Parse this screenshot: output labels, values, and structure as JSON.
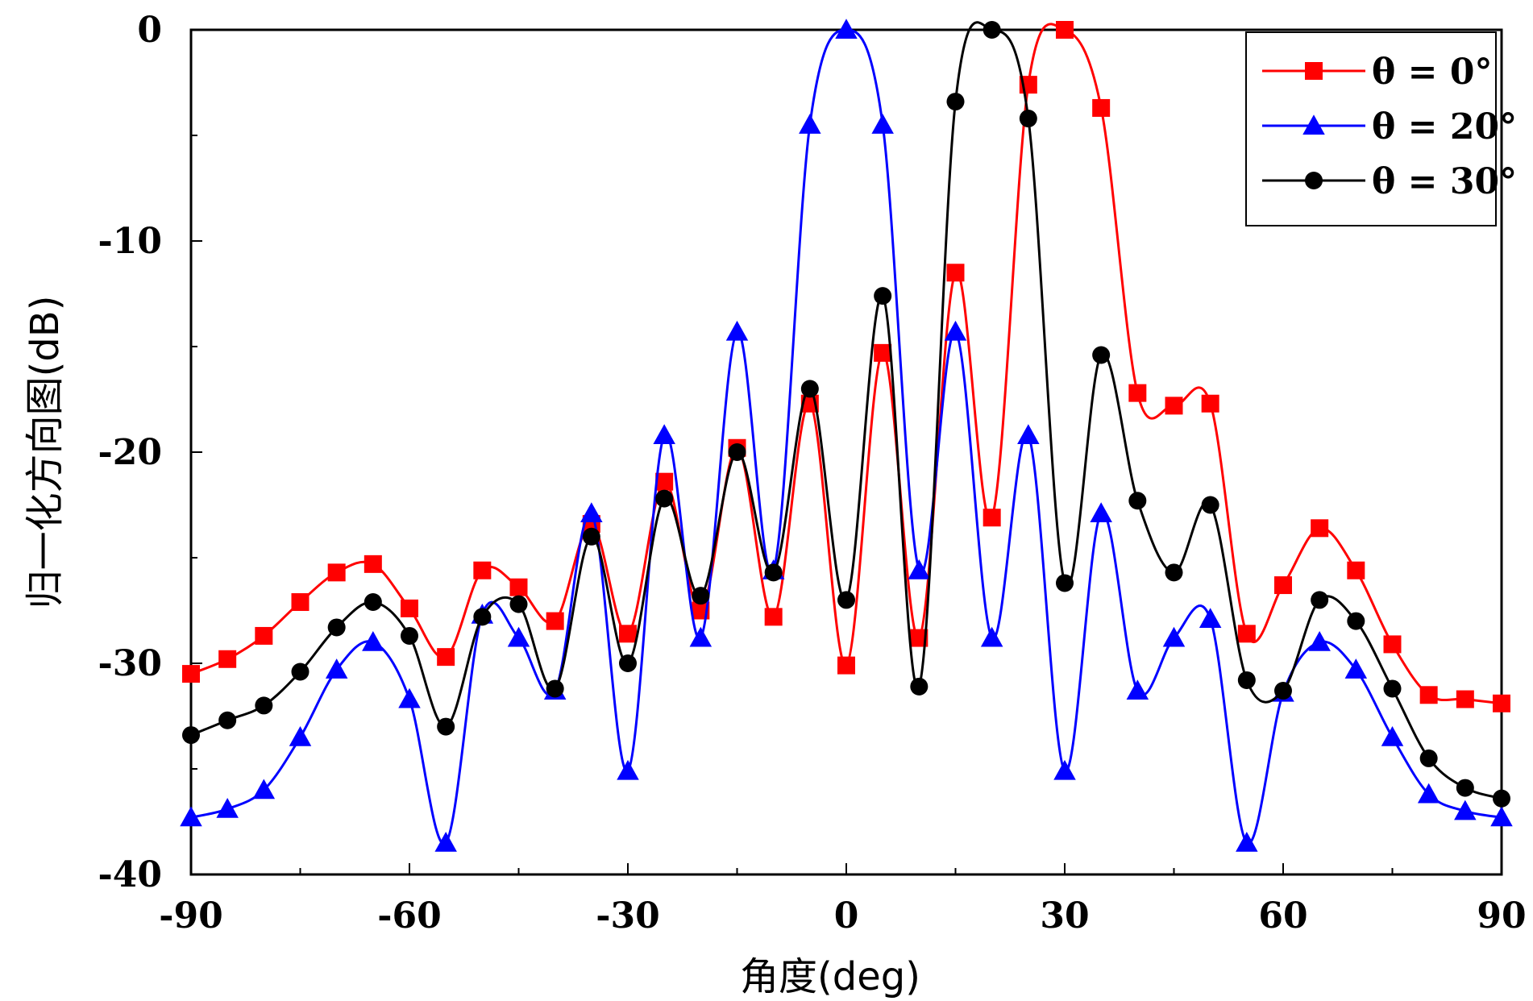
{
  "chart_data": {
    "type": "line",
    "title": "",
    "xlabel": "角度(deg)",
    "ylabel": "归一化方向图(dB)",
    "xlim": [
      -90,
      90
    ],
    "ylim": [
      -40,
      0
    ],
    "xticks": [
      -90,
      -60,
      -30,
      0,
      30,
      60,
      90
    ],
    "yticks": [
      0,
      -10,
      -20,
      -30,
      -40
    ],
    "xtick_labels": [
      "-90",
      "-60",
      "-30",
      "0",
      "30",
      "60",
      "90"
    ],
    "ytick_labels": [
      "0",
      "-10",
      "-20",
      "-30",
      "-40"
    ],
    "legend_position": "top-right",
    "grid": false,
    "marker_x": [
      -90,
      -85,
      -80,
      -75,
      -70,
      -65,
      -60,
      -55,
      -50,
      -45,
      -40,
      -35,
      -30,
      -25,
      -20,
      -15,
      -10,
      -5,
      0,
      5,
      10,
      15,
      20,
      25,
      30,
      35,
      40,
      45,
      50,
      55,
      60,
      65,
      70,
      75,
      80,
      85,
      90
    ],
    "series": [
      {
        "name": "θ = 0°",
        "color": "#ff0000",
        "marker": "square",
        "values": [
          -30.5,
          -29.8,
          -28.7,
          -27.1,
          -25.7,
          -25.3,
          -27.4,
          -29.7,
          -25.6,
          -26.4,
          -28.0,
          -23.4,
          -28.6,
          -21.4,
          -27.5,
          -19.8,
          -27.8,
          -17.7,
          -30.1,
          -15.3,
          -28.8,
          -11.5,
          -23.1,
          -2.6,
          0.0,
          -3.7,
          -17.2,
          -17.8,
          -17.7,
          -28.6,
          -26.3,
          -23.6,
          -25.6,
          -29.1,
          -31.5,
          -31.7,
          -31.9
        ]
      },
      {
        "name": "θ = 20°",
        "color": "#0000ff",
        "marker": "triangle",
        "values": [
          -37.3,
          -36.9,
          -36.0,
          -33.5,
          -30.3,
          -29.0,
          -31.7,
          -38.5,
          -27.7,
          -28.8,
          -31.3,
          -22.9,
          -35.1,
          -19.2,
          -28.8,
          -14.3,
          -25.6,
          -4.5,
          0.0,
          -4.5,
          -25.6,
          -14.3,
          -28.8,
          -19.2,
          -35.1,
          -22.9,
          -31.3,
          -28.8,
          -27.9,
          -38.5,
          -31.4,
          -29.0,
          -30.3,
          -33.5,
          -36.2,
          -37.0,
          -37.3
        ]
      },
      {
        "name": "θ = 30°",
        "color": "#000000",
        "marker": "circle",
        "values": [
          -33.4,
          -32.7,
          -32.0,
          -30.4,
          -28.3,
          -27.1,
          -28.7,
          -33.0,
          -27.8,
          -27.2,
          -31.2,
          -24.0,
          -30.0,
          -22.2,
          -26.8,
          -20.0,
          -25.7,
          -17.0,
          -27.0,
          -12.6,
          -31.1,
          -3.4,
          0.0,
          -4.2,
          -26.2,
          -15.4,
          -22.3,
          -25.7,
          -22.5,
          -30.8,
          -31.3,
          -27.0,
          -28.0,
          -31.2,
          -34.5,
          -35.9,
          -36.4
        ]
      }
    ]
  }
}
